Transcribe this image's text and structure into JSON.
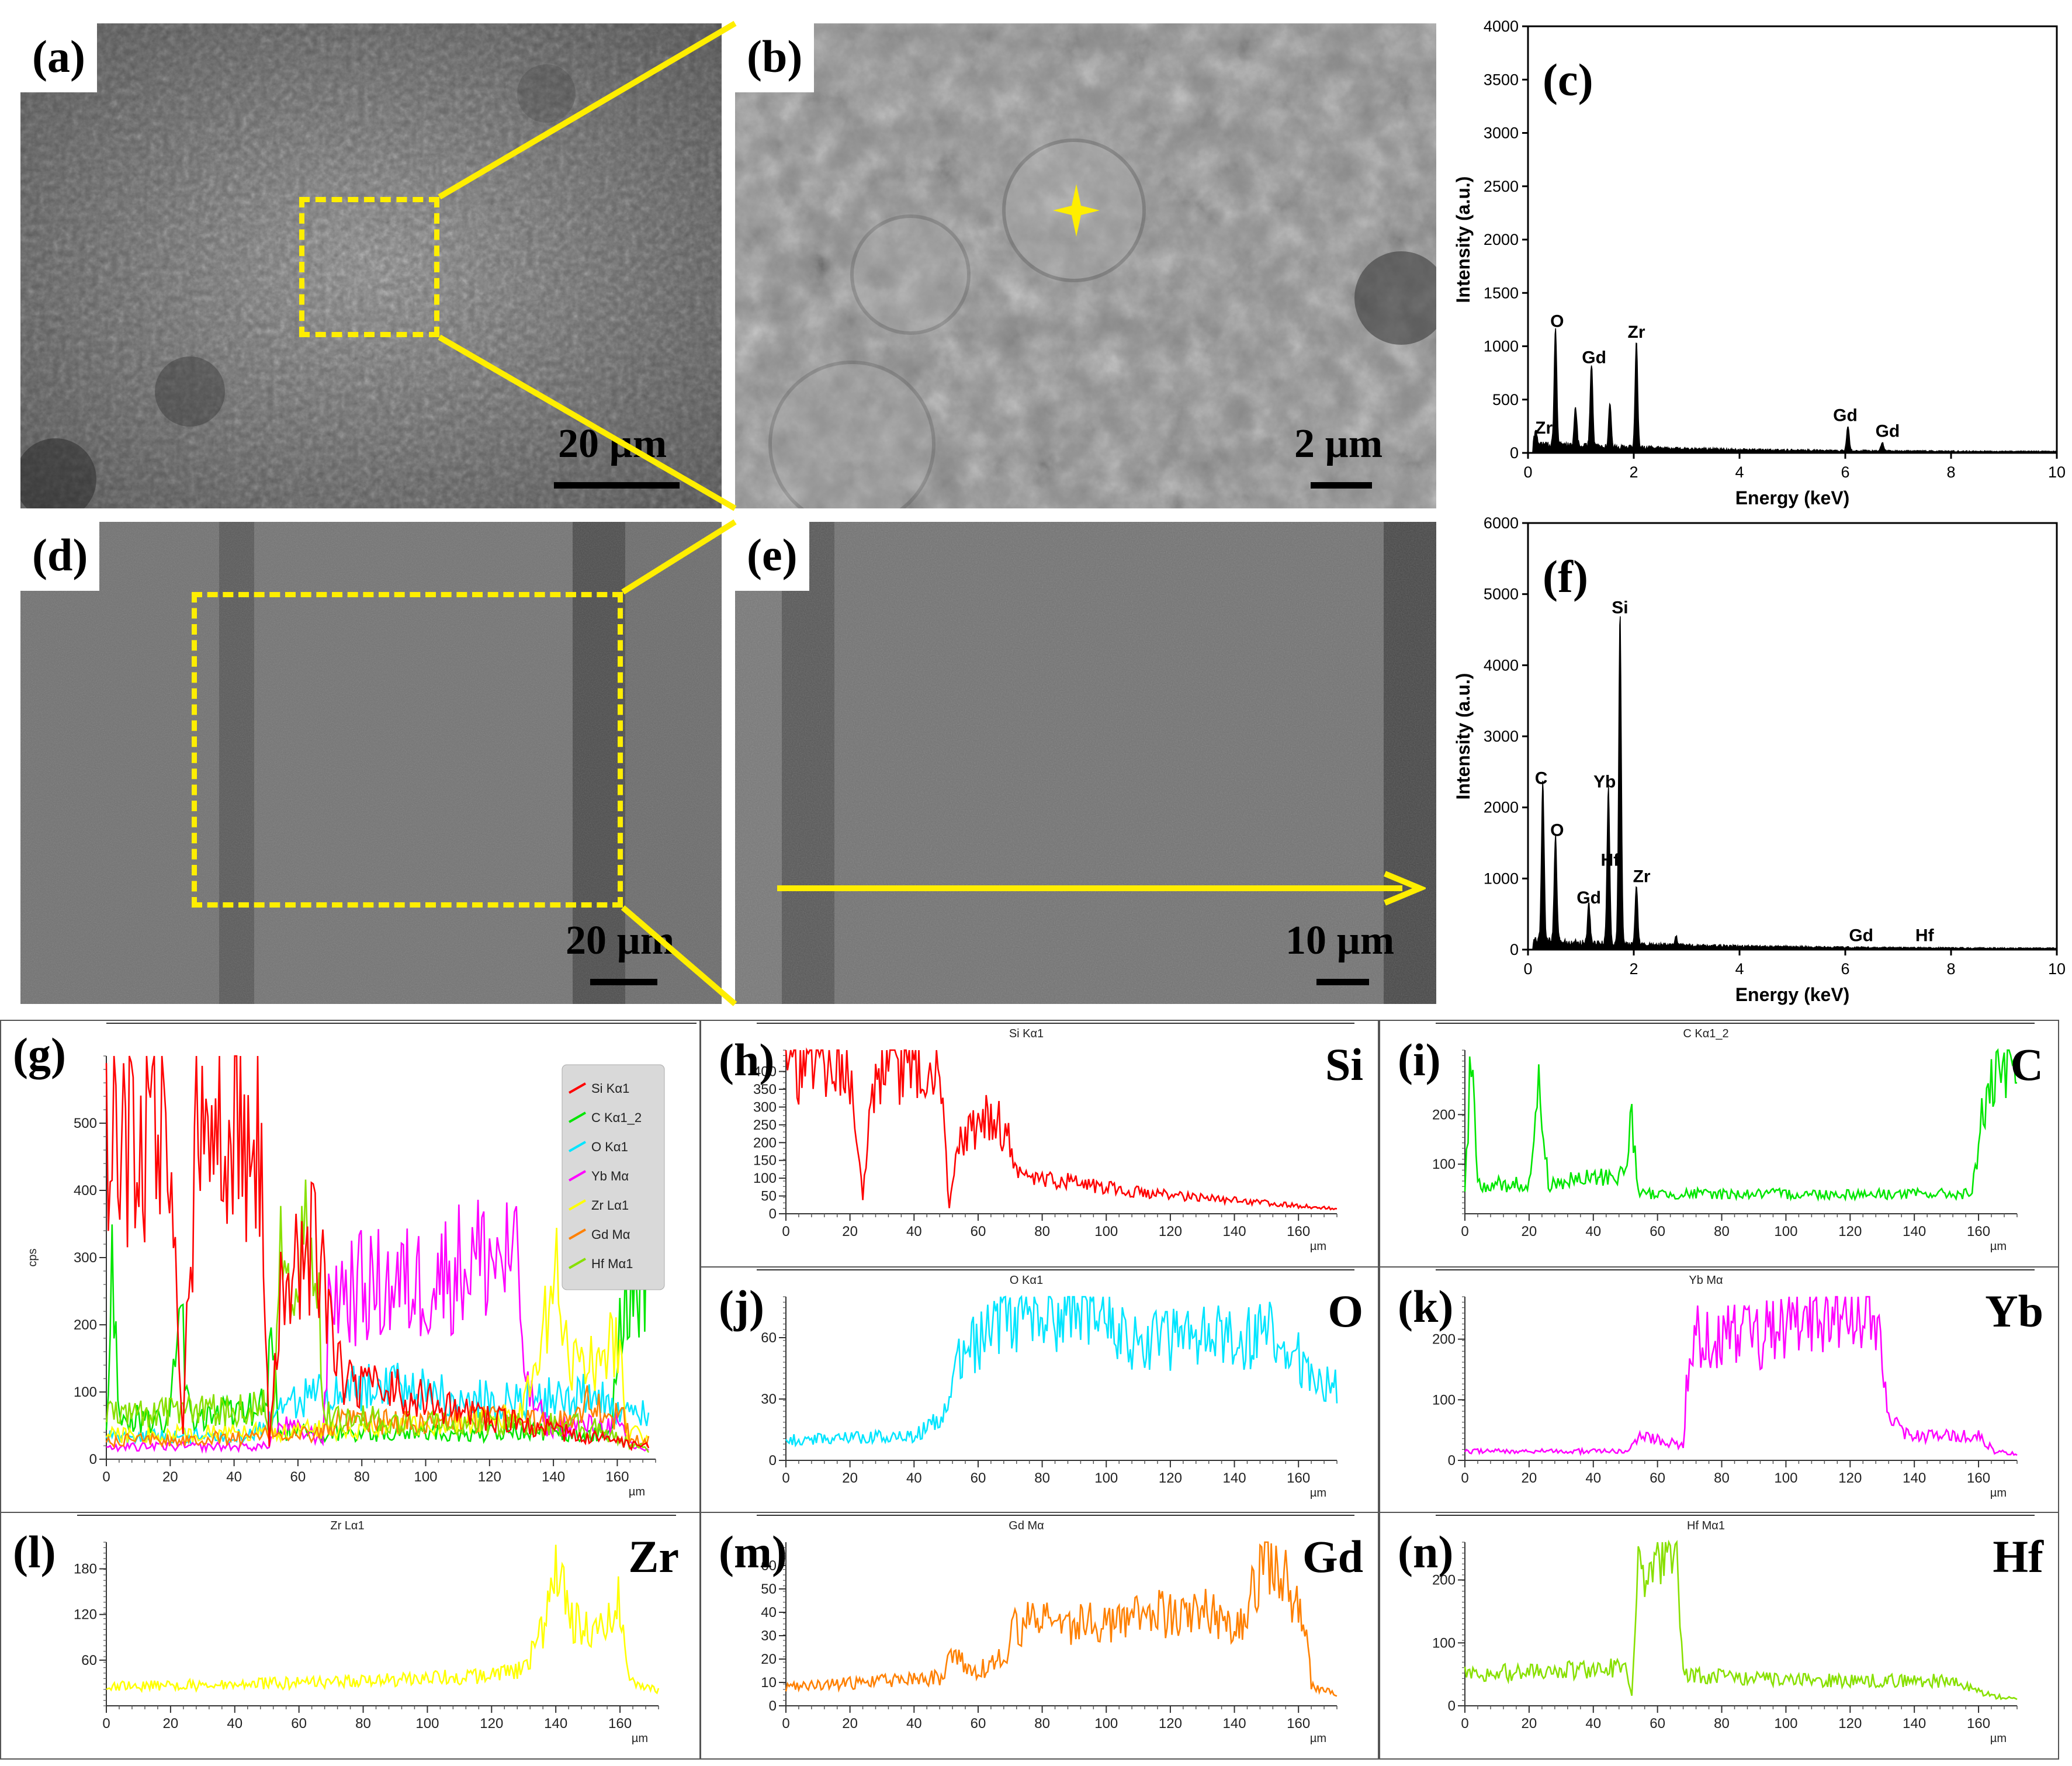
{
  "panels": {
    "a": {
      "label": "(a)",
      "scale": "20 µm"
    },
    "b": {
      "label": "(b)",
      "scale": "2 µm"
    },
    "c": {
      "label": "(c)"
    },
    "d": {
      "label": "(d)",
      "scale": "20 µm"
    },
    "e": {
      "label": "(e)",
      "scale": "10 µm"
    },
    "f": {
      "label": "(f)"
    },
    "g": {
      "label": "(g)"
    },
    "h": {
      "label": "(h)",
      "element": "Si",
      "title": "Si Kα1"
    },
    "i": {
      "label": "(i)",
      "element": "C",
      "title": "C Kα1_2"
    },
    "j": {
      "label": "(j)",
      "element": "O",
      "title": "O Kα1"
    },
    "k": {
      "label": "(k)",
      "element": "Yb",
      "title": "Yb Mα"
    },
    "l": {
      "label": "(l)",
      "element": "Zr",
      "title": "Zr Lα1"
    },
    "m": {
      "label": "(m)",
      "element": "Gd",
      "title": "Gd Mα"
    },
    "n": {
      "label": "(n)",
      "element": "Hf",
      "title": "Hf Mα1"
    }
  },
  "colors": {
    "Si": "#ff0000",
    "C": "#00e600",
    "O": "#00e5ff",
    "Yb": "#ff00ff",
    "Zr": "#ffff00",
    "Gd": "#ff8000",
    "Hf": "#88e000",
    "marker": "#ffee00"
  },
  "chart_data": [
    {
      "id": "c",
      "type": "line",
      "xlabel": "Energy (keV)",
      "ylabel": "Intensity (a.u.)",
      "xlim": [
        0,
        10
      ],
      "ylim": [
        0,
        4000
      ],
      "xticks": [
        0,
        2,
        4,
        6,
        8,
        10
      ],
      "yticks": [
        0,
        500,
        1000,
        1500,
        2000,
        2500,
        3000,
        3500,
        4000
      ],
      "peaks": [
        {
          "x": 0.15,
          "y": 120
        },
        {
          "x": 0.52,
          "y": 1100
        },
        {
          "x": 0.9,
          "y": 350
        },
        {
          "x": 1.2,
          "y": 780
        },
        {
          "x": 1.55,
          "y": 420
        },
        {
          "x": 2.05,
          "y": 1000
        },
        {
          "x": 6.05,
          "y": 230
        },
        {
          "x": 6.7,
          "y": 80
        }
      ],
      "annotations": [
        {
          "text": "Zr",
          "x": 0.3,
          "y": 180
        },
        {
          "text": "O",
          "x": 0.55,
          "y": 1180
        },
        {
          "text": "Gd",
          "x": 1.25,
          "y": 840
        },
        {
          "text": "Zr",
          "x": 2.05,
          "y": 1080
        },
        {
          "text": "Gd",
          "x": 6.0,
          "y": 300
        },
        {
          "text": "Gd",
          "x": 6.8,
          "y": 150
        }
      ]
    },
    {
      "id": "f",
      "type": "line",
      "xlabel": "Energy (keV)",
      "ylabel": "Intensity (a.u.)",
      "xlim": [
        0,
        10
      ],
      "ylim": [
        0,
        6000
      ],
      "xticks": [
        0,
        2,
        4,
        6,
        8,
        10
      ],
      "yticks": [
        0,
        1000,
        2000,
        3000,
        4000,
        5000,
        6000
      ],
      "peaks": [
        {
          "x": 0.28,
          "y": 2250
        },
        {
          "x": 0.52,
          "y": 1500
        },
        {
          "x": 1.15,
          "y": 550
        },
        {
          "x": 1.52,
          "y": 2200
        },
        {
          "x": 1.74,
          "y": 4650
        },
        {
          "x": 2.05,
          "y": 850
        },
        {
          "x": 2.8,
          "y": 120
        }
      ],
      "annotations": [
        {
          "text": "C",
          "x": 0.25,
          "y": 2330
        },
        {
          "text": "O",
          "x": 0.55,
          "y": 1600
        },
        {
          "text": "Gd",
          "x": 1.15,
          "y": 650
        },
        {
          "text": "Yb",
          "x": 1.45,
          "y": 2280
        },
        {
          "text": "Si",
          "x": 1.74,
          "y": 4730
        },
        {
          "text": "Hf",
          "x": 1.55,
          "y": 1180
        },
        {
          "text": "Zr",
          "x": 2.15,
          "y": 950
        },
        {
          "text": "Gd",
          "x": 6.3,
          "y": 120
        },
        {
          "text": "Hf",
          "x": 7.5,
          "y": 120
        }
      ]
    },
    {
      "id": "g",
      "type": "line",
      "xlabel": "µm",
      "ylabel": "cps",
      "xlim": [
        0,
        172
      ],
      "ylim": [
        0,
        600
      ],
      "xticks": [
        0,
        20,
        40,
        60,
        80,
        100,
        120,
        140,
        160
      ],
      "yticks": [
        0,
        100,
        200,
        300,
        400,
        500
      ],
      "legend": [
        "Si Kα1",
        "C Kα1_2",
        "O Kα1",
        "Yb Mα",
        "Zr Lα1",
        "Gd Mα",
        "Hf Mα1"
      ]
    },
    {
      "id": "h",
      "type": "line",
      "element": "Si",
      "xlabel": "µm",
      "xlim": [
        0,
        172
      ],
      "ylim": [
        0,
        460
      ],
      "xticks": [
        0,
        20,
        40,
        60,
        80,
        100,
        120,
        140,
        160
      ],
      "yticks": [
        0,
        50,
        100,
        150,
        200,
        250,
        300,
        350,
        400
      ],
      "profile": [
        [
          0,
          450
        ],
        [
          2,
          420
        ],
        [
          20,
          420
        ],
        [
          24,
          40
        ],
        [
          28,
          420
        ],
        [
          48,
          420
        ],
        [
          51,
          20
        ],
        [
          54,
          200
        ],
        [
          65,
          280
        ],
        [
          70,
          200
        ],
        [
          74,
          100
        ],
        [
          90,
          90
        ],
        [
          110,
          60
        ],
        [
          130,
          45
        ],
        [
          150,
          30
        ],
        [
          170,
          15
        ]
      ]
    },
    {
      "id": "i",
      "type": "line",
      "element": "C",
      "xlabel": "µm",
      "xlim": [
        0,
        172
      ],
      "ylim": [
        0,
        330
      ],
      "xticks": [
        0,
        20,
        40,
        60,
        80,
        100,
        120,
        140,
        160
      ],
      "yticks": [
        100,
        200
      ],
      "profile": [
        [
          0,
          40
        ],
        [
          2,
          320
        ],
        [
          4,
          60
        ],
        [
          20,
          60
        ],
        [
          23,
          250
        ],
        [
          26,
          60
        ],
        [
          50,
          80
        ],
        [
          52,
          210
        ],
        [
          54,
          40
        ],
        [
          158,
          40
        ],
        [
          161,
          200
        ],
        [
          165,
          260
        ],
        [
          172,
          290
        ]
      ]
    },
    {
      "id": "j",
      "type": "line",
      "element": "O",
      "xlabel": "µm",
      "xlim": [
        0,
        172
      ],
      "ylim": [
        0,
        80
      ],
      "xticks": [
        0,
        20,
        40,
        60,
        80,
        100,
        120,
        140,
        160
      ],
      "yticks": [
        0,
        30,
        60
      ],
      "profile": [
        [
          0,
          10
        ],
        [
          40,
          12
        ],
        [
          48,
          20
        ],
        [
          54,
          50
        ],
        [
          65,
          65
        ],
        [
          80,
          70
        ],
        [
          90,
          75
        ],
        [
          110,
          58
        ],
        [
          140,
          60
        ],
        [
          150,
          62
        ],
        [
          160,
          50
        ],
        [
          165,
          40
        ],
        [
          172,
          35
        ]
      ]
    },
    {
      "id": "k",
      "type": "line",
      "element": "Yb",
      "xlabel": "µm",
      "xlim": [
        0,
        172
      ],
      "ylim": [
        0,
        270
      ],
      "xticks": [
        0,
        20,
        40,
        60,
        80,
        100,
        120,
        140,
        160
      ],
      "yticks": [
        0,
        100,
        200
      ],
      "profile": [
        [
          0,
          15
        ],
        [
          50,
          15
        ],
        [
          55,
          40
        ],
        [
          68,
          25
        ],
        [
          70,
          200
        ],
        [
          100,
          210
        ],
        [
          115,
          240
        ],
        [
          128,
          240
        ],
        [
          132,
          80
        ],
        [
          138,
          40
        ],
        [
          160,
          40
        ],
        [
          165,
          15
        ],
        [
          172,
          10
        ]
      ]
    },
    {
      "id": "l",
      "type": "line",
      "element": "Zr",
      "xlabel": "µm",
      "xlim": [
        0,
        172
      ],
      "ylim": [
        0,
        215
      ],
      "xticks": [
        0,
        20,
        40,
        60,
        80,
        100,
        120,
        140,
        160
      ],
      "yticks": [
        60,
        120,
        180
      ],
      "profile": [
        [
          0,
          25
        ],
        [
          60,
          30
        ],
        [
          120,
          40
        ],
        [
          130,
          50
        ],
        [
          136,
          100
        ],
        [
          140,
          210
        ],
        [
          144,
          110
        ],
        [
          155,
          100
        ],
        [
          160,
          140
        ],
        [
          163,
          30
        ],
        [
          172,
          20
        ]
      ]
    },
    {
      "id": "m",
      "type": "line",
      "element": "Gd",
      "xlabel": "µm",
      "xlim": [
        0,
        172
      ],
      "ylim": [
        0,
        70
      ],
      "xticks": [
        0,
        20,
        40,
        60,
        80,
        100,
        120,
        140,
        160
      ],
      "yticks": [
        0,
        10,
        20,
        30,
        40,
        50,
        60
      ],
      "profile": [
        [
          0,
          8
        ],
        [
          48,
          12
        ],
        [
          52,
          22
        ],
        [
          58,
          14
        ],
        [
          68,
          20
        ],
        [
          72,
          35
        ],
        [
          100,
          35
        ],
        [
          130,
          42
        ],
        [
          140,
          30
        ],
        [
          146,
          50
        ],
        [
          150,
          68
        ],
        [
          155,
          55
        ],
        [
          162,
          40
        ],
        [
          164,
          8
        ],
        [
          172,
          5
        ]
      ]
    },
    {
      "id": "n",
      "type": "line",
      "element": "Hf",
      "xlabel": "µm",
      "xlim": [
        0,
        172
      ],
      "ylim": [
        0,
        260
      ],
      "xticks": [
        0,
        20,
        40,
        60,
        80,
        100,
        120,
        140,
        160
      ],
      "yticks": [
        0,
        100,
        200
      ],
      "profile": [
        [
          0,
          50
        ],
        [
          50,
          60
        ],
        [
          52,
          20
        ],
        [
          54,
          250
        ],
        [
          58,
          180
        ],
        [
          62,
          240
        ],
        [
          66,
          230
        ],
        [
          68,
          50
        ],
        [
          100,
          40
        ],
        [
          150,
          40
        ],
        [
          165,
          15
        ],
        [
          172,
          10
        ]
      ]
    }
  ]
}
